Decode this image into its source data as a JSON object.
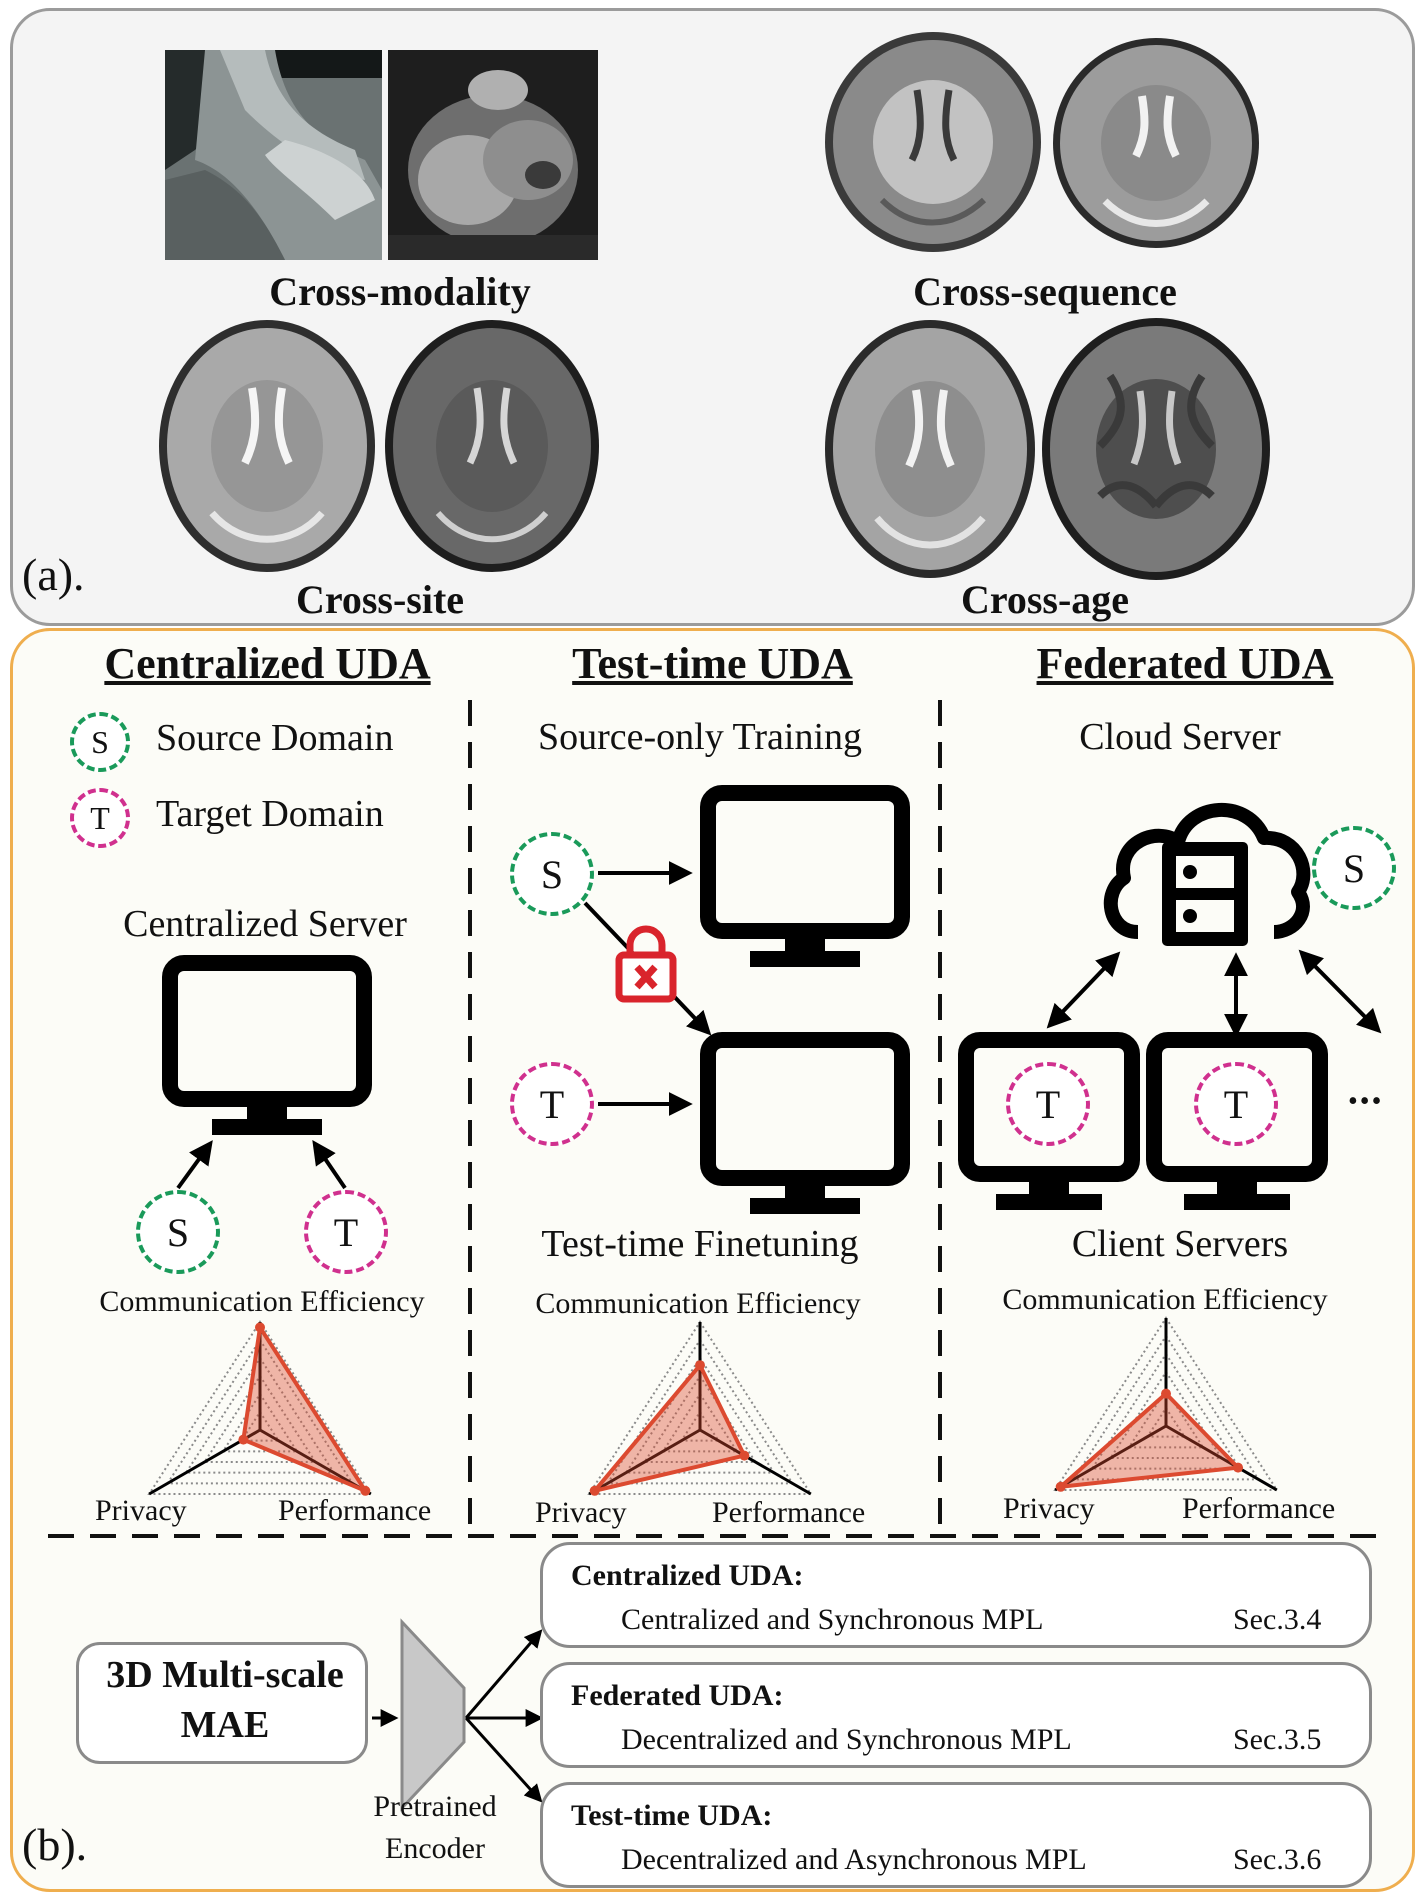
{
  "panel_a": {
    "label": "(a).",
    "captions": {
      "modality": "Cross-modality",
      "sequence": "Cross-sequence",
      "site": "Cross-site",
      "age": "Cross-age"
    }
  },
  "panel_b": {
    "label": "(b).",
    "centralized": {
      "header": "Centralized UDA",
      "legend_source_letter": "S",
      "legend_source": "Source Domain",
      "legend_target_letter": "T",
      "legend_target": "Target Domain",
      "server_label": "Centralized Server",
      "source_letter": "S",
      "target_letter": "T"
    },
    "testtime": {
      "header": "Test-time UDA",
      "top_label": "Source-only Training",
      "bottom_label": "Test-time Finetuning",
      "source_letter": "S",
      "target_letter": "T"
    },
    "federated": {
      "header": "Federated UDA",
      "cloud_label": "Cloud Server",
      "client_label": "Client Servers",
      "source_letter": "S",
      "client_letter_1": "T",
      "client_letter_2": "T",
      "ellipsis": "•••"
    },
    "radar": {
      "axis_top": "Communication Efficiency",
      "axis_left": "Privacy",
      "axis_right": "Performance",
      "values": {
        "centralized": {
          "communication": 0.95,
          "privacy": 0.15,
          "performance": 0.95
        },
        "testtime": {
          "communication": 0.6,
          "privacy": 0.95,
          "performance": 0.4
        },
        "federated": {
          "communication": 0.3,
          "privacy": 0.95,
          "performance": 0.65
        }
      }
    },
    "mae_box": {
      "line1": "3D Multi-scale",
      "line2": "MAE"
    },
    "encoder_label": {
      "line1": "Pretrained",
      "line2": "Encoder"
    },
    "methods": [
      {
        "title": "Centralized UDA:",
        "desc": "Centralized and Synchronous MPL",
        "sec": "Sec.3.4"
      },
      {
        "title": "Federated UDA:",
        "desc": "Decentralized and Synchronous MPL",
        "sec": "Sec.3.5"
      },
      {
        "title": "Test-time UDA:",
        "desc": "Decentralized and Asynchronous MPL",
        "sec": "Sec.3.6"
      }
    ],
    "colors": {
      "source": "#1a9a5a",
      "target": "#d0308e",
      "lock": "#d9242c",
      "radar": "#dc4a30"
    }
  }
}
